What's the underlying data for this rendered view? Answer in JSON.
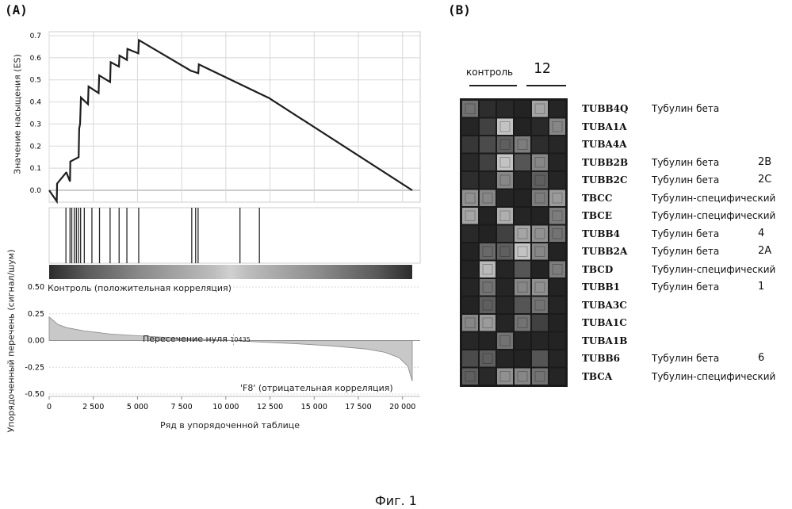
{
  "panel_a_label": "(A)",
  "panel_b_label": "(B)",
  "caption": "Фиг. 1",
  "gsea": {
    "es_ylabel": "Значение насыщения (ES)",
    "rank_ylabel": "Упорядоченный перечень (сигнал/шум)",
    "xlabel": "Ряд в упорядоченной таблице",
    "pos_label": "Контроль (положительная корреляция)",
    "neg_label": "'F8' (отрицательная корреляция)",
    "zero_cross_text": "Пересечение нуля",
    "zero_cross_value": "10435",
    "colors": {
      "line": "#1e1e1e",
      "hit": "#2a2a2a",
      "grid": "#d8d8d8"
    }
  },
  "chart_data": [
    {
      "type": "line",
      "title": "",
      "xlabel": "Ряд в упорядоченной таблице",
      "ylabel": "Значение насыщения (ES)",
      "xlim": [
        0,
        21000
      ],
      "ylim": [
        -0.02,
        0.7
      ],
      "grid": true,
      "x_ticks": [
        0,
        2500,
        5000,
        7500,
        10000,
        12500,
        15000,
        17500,
        20000
      ],
      "x_tick_labels": [
        "0",
        "2 500",
        "5 000",
        "7 500",
        "10 000",
        "12 500",
        "15 000",
        "17 500",
        "20 000"
      ],
      "y_ticks": [
        0.0,
        0.1,
        0.2,
        0.3,
        0.4,
        0.5,
        0.6,
        0.7
      ],
      "y_tick_labels": [
        "0.0",
        "0.1",
        "0.2",
        "0.3",
        "0.4",
        "0.5",
        "0.6",
        "0.7"
      ],
      "x": [
        0,
        430,
        450,
        960,
        980,
        1180,
        1200,
        1670,
        1700,
        1750,
        1800,
        2200,
        2230,
        2800,
        2830,
        3450,
        3480,
        3950,
        3980,
        4400,
        4430,
        5050,
        5080,
        8050,
        8080,
        8440,
        8470,
        12380,
        12400,
        20550
      ],
      "values": [
        0.0,
        -0.05,
        0.03,
        0.08,
        0.08,
        0.04,
        0.13,
        0.15,
        0.28,
        0.3,
        0.42,
        0.39,
        0.47,
        0.44,
        0.52,
        0.49,
        0.58,
        0.56,
        0.61,
        0.59,
        0.64,
        0.62,
        0.68,
        0.54,
        0.54,
        0.53,
        0.57,
        0.42,
        0.42,
        0.0
      ]
    },
    {
      "type": "bar",
      "title": "",
      "xlabel": "",
      "ylabel": "",
      "hits": [
        950,
        1180,
        1280,
        1420,
        1540,
        1660,
        1780,
        1990,
        2420,
        2850,
        3450,
        3960,
        4400,
        5070,
        8070,
        8290,
        8430,
        10800,
        11900
      ]
    },
    {
      "type": "area",
      "title": "",
      "xlabel": "Ряд в упорядоченной таблице",
      "ylabel": "Упорядоченный перечень (сигнал/шум)",
      "xlim": [
        0,
        21000
      ],
      "ylim": [
        -0.5,
        0.5
      ],
      "y_ticks": [
        0.5,
        0.25,
        0.0,
        -0.25,
        -0.5
      ],
      "y_tick_labels": [
        "0.50",
        "0.25",
        "0.00",
        "-0.25",
        "-0.50"
      ],
      "x": [
        0,
        500,
        1000,
        2000,
        3500,
        5000,
        7000,
        9000,
        10435,
        12000,
        14000,
        16000,
        18000,
        19000,
        19800,
        20300,
        20550
      ],
      "values": [
        0.22,
        0.15,
        0.12,
        0.09,
        0.06,
        0.045,
        0.025,
        0.01,
        0.0,
        -0.015,
        -0.03,
        -0.05,
        -0.08,
        -0.11,
        -0.16,
        -0.24,
        -0.38
      ]
    },
    {
      "type": "heatmap",
      "title": "",
      "column_groups": [
        {
          "label": "контроль",
          "columns": 3
        },
        {
          "label": "12",
          "columns": 3
        }
      ],
      "rows": [
        "TUBB4Q",
        "TUBA1A",
        "TUBA4A",
        "TUBB2B",
        "TUBB2C",
        "TBCC",
        "TBCE",
        "TUBB4",
        "TUBB2A",
        "TBCD",
        "TUBB1",
        "TUBA3C",
        "TUBA1C",
        "TUBA1B",
        "TUBB6",
        "TBCA"
      ],
      "values": [
        [
          0.45,
          0.1,
          0.08,
          0.05,
          0.7,
          0.06
        ],
        [
          0.06,
          0.2,
          0.85,
          0.05,
          0.08,
          0.55
        ],
        [
          0.15,
          0.25,
          0.35,
          0.5,
          0.1,
          0.07
        ],
        [
          0.08,
          0.2,
          0.85,
          0.3,
          0.55,
          0.06
        ],
        [
          0.1,
          0.08,
          0.55,
          0.06,
          0.35,
          0.06
        ],
        [
          0.6,
          0.55,
          0.06,
          0.05,
          0.5,
          0.65
        ],
        [
          0.7,
          0.05,
          0.75,
          0.06,
          0.05,
          0.5
        ],
        [
          0.08,
          0.05,
          0.2,
          0.7,
          0.6,
          0.45
        ],
        [
          0.05,
          0.4,
          0.35,
          0.85,
          0.55,
          0.05
        ],
        [
          0.05,
          0.8,
          0.06,
          0.3,
          0.05,
          0.5
        ],
        [
          0.06,
          0.45,
          0.06,
          0.55,
          0.6,
          0.05
        ],
        [
          0.05,
          0.35,
          0.06,
          0.3,
          0.45,
          0.06
        ],
        [
          0.55,
          0.65,
          0.06,
          0.45,
          0.2,
          0.05
        ],
        [
          0.07,
          0.05,
          0.45,
          0.05,
          0.06,
          0.05
        ],
        [
          0.25,
          0.35,
          0.06,
          0.05,
          0.3,
          0.06
        ],
        [
          0.35,
          0.08,
          0.6,
          0.55,
          0.45,
          0.06
        ]
      ]
    }
  ],
  "heatmap_descriptions": [
    {
      "desc": "Тубулин бета",
      "suffix": ""
    },
    {
      "desc": "",
      "suffix": ""
    },
    {
      "desc": "",
      "suffix": ""
    },
    {
      "desc": "Тубулин бета",
      "suffix": "2B"
    },
    {
      "desc": "Тубулин бета",
      "suffix": "2C"
    },
    {
      "desc": "Тубулин-специфический",
      "suffix": ""
    },
    {
      "desc": "Тубулин-специфический",
      "suffix": ""
    },
    {
      "desc": "Тубулин бета",
      "suffix": "4"
    },
    {
      "desc": "Тубулин бета",
      "suffix": "2A"
    },
    {
      "desc": "Тубулин-специфический",
      "suffix": ""
    },
    {
      "desc": "Тубулин бета",
      "suffix": "1"
    },
    {
      "desc": "",
      "suffix": ""
    },
    {
      "desc": "",
      "suffix": ""
    },
    {
      "desc": "",
      "suffix": ""
    },
    {
      "desc": "Тубулин бета",
      "suffix": "6"
    },
    {
      "desc": "Тубулин-специфический",
      "suffix": ""
    }
  ]
}
